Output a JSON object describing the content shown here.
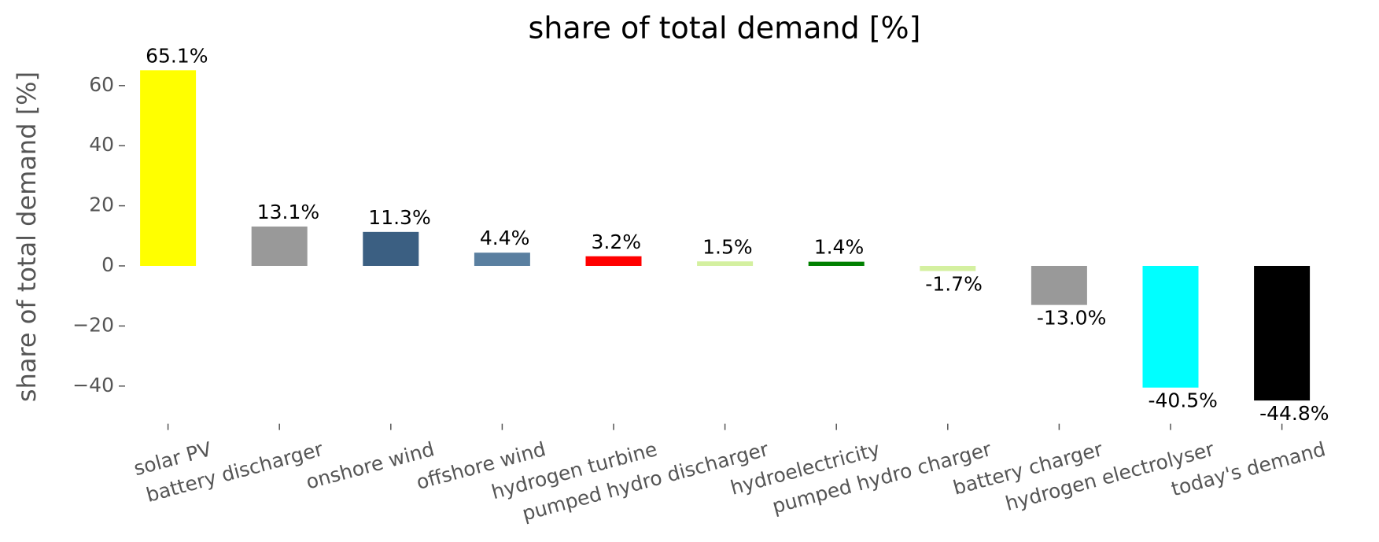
{
  "chart_data": {
    "type": "bar",
    "title": "share of total demand [%]",
    "ylabel": "share of total demand [%]",
    "categories": [
      "solar PV",
      "battery discharger",
      "onshore wind",
      "offshore wind",
      "hydrogen turbine",
      "pumped hydro discharger",
      "hydroelectricity",
      "pumped hydro charger",
      "battery charger",
      "hydrogen electrolyser",
      "today's demand"
    ],
    "values": [
      65.1,
      13.1,
      11.3,
      4.4,
      3.2,
      1.5,
      1.4,
      -1.7,
      -13.0,
      -40.5,
      -44.8
    ],
    "value_labels": [
      "65.1%",
      "13.1%",
      "11.3%",
      "4.4%",
      "3.2%",
      "1.5%",
      "1.4%",
      "-1.7%",
      "-13.0%",
      "-40.5%",
      "-44.8%"
    ],
    "colors": [
      "#ffff00",
      "#999999",
      "#3b5f82",
      "#5a7fa0",
      "#ff0000",
      "#d4f0a0",
      "#008000",
      "#d4f0a0",
      "#999999",
      "#00ffff",
      "#000000"
    ],
    "ylim": [
      -52,
      68
    ],
    "yticks": [
      {
        "value": -40,
        "label": "−40"
      },
      {
        "value": -20,
        "label": "−20"
      },
      0,
      20,
      40,
      60
    ],
    "grid": false
  }
}
